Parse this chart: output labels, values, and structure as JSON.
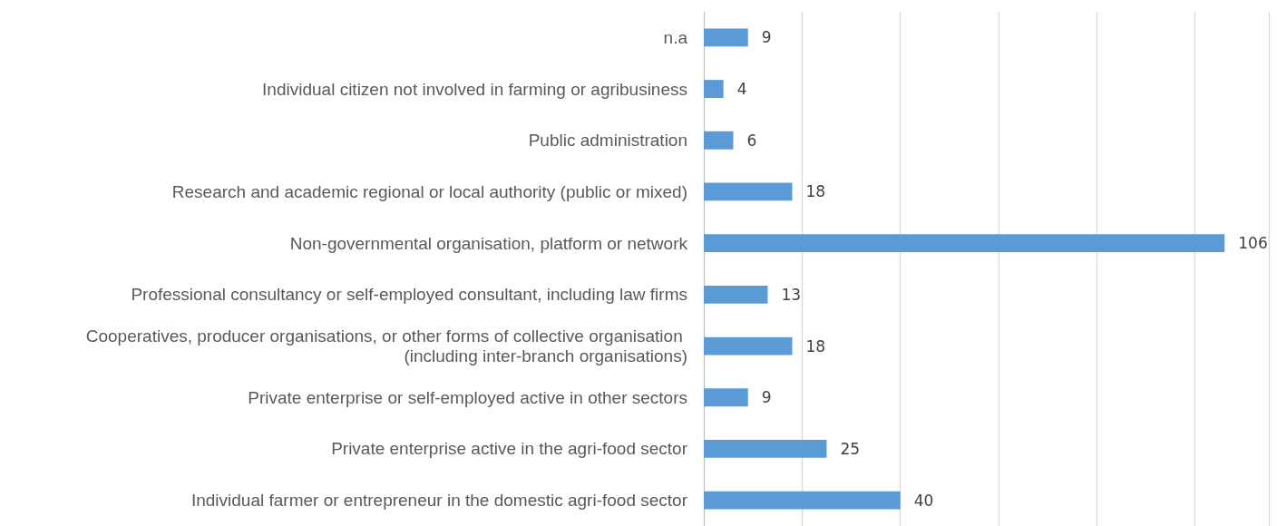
{
  "chart_data": {
    "type": "bar",
    "orientation": "horizontal",
    "categories": [
      "n.a",
      "Individual citizen not involved in farming or agribusiness",
      "Public administration",
      "Research and academic regional or local authority (public or mixed)",
      "Non-governmental organisation, platform or network",
      "Professional consultancy or self-employed consultant, including law firms",
      "Cooperatives, producer organisations, or other forms of collective organisation (including inter-branch organisations)",
      "Private enterprise or self-employed active in other sectors",
      "Private enterprise active in the agri-food sector",
      "Individual farmer or entrepreneur in the domestic agri-food sector"
    ],
    "values": [
      9,
      4,
      6,
      18,
      106,
      13,
      18,
      9,
      25,
      40
    ],
    "color": "#5b9bd5",
    "data_labels": true,
    "grid": "x",
    "tick_labels": "y",
    "xlim": [
      0,
      115
    ],
    "xticks": [
      {
        "value": 0,
        "label": null
      },
      {
        "value": 20,
        "label": null
      },
      {
        "value": 40,
        "label": null
      },
      {
        "value": 60,
        "label": null
      },
      {
        "value": 80,
        "label": null
      },
      {
        "value": 100,
        "label": null
      }
    ]
  }
}
